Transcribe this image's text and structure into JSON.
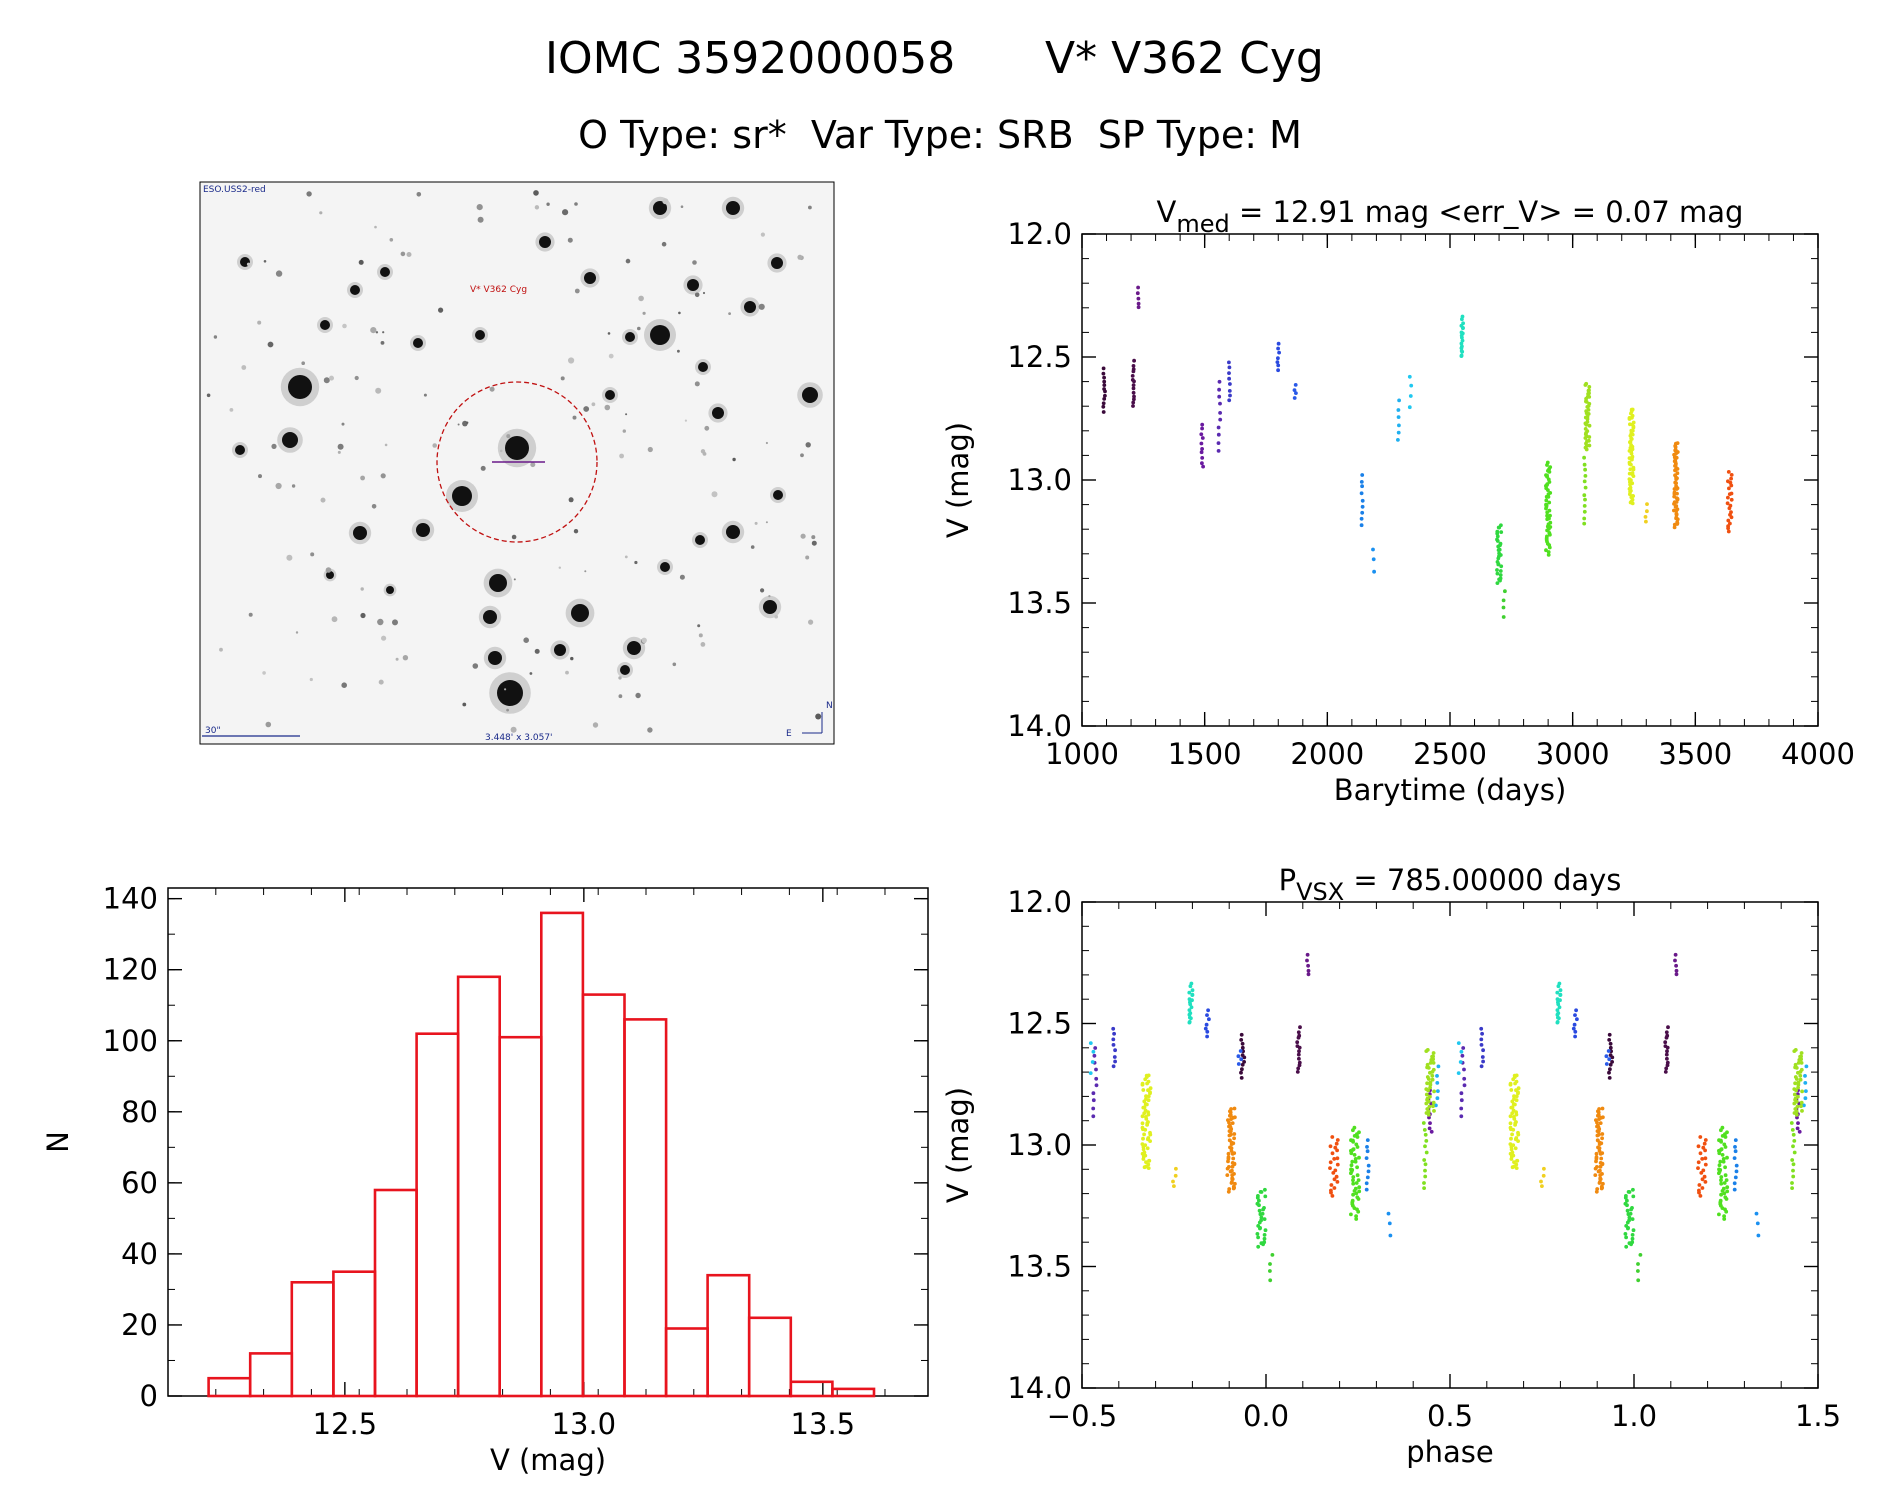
{
  "header": {
    "title_id": "IOMC 3592000058",
    "title_name": "V* V362 Cyg",
    "subtitle": "O Type: sr*  Var Type: SRB  SP Type: M"
  },
  "finder": {
    "survey_label": "ESO.USS2-red",
    "target_label": "V* V362 Cyg",
    "scale_label": "30\"",
    "fov_label": "3.448' x 3.057'",
    "north_label": "N",
    "east_label": "E"
  },
  "chart_data": [
    {
      "id": "lightcurve",
      "type": "scatter",
      "title_main": "V",
      "title_sub": "med",
      "title_rest": " = 12.91 mag <err_V> = 0.07 mag",
      "xlabel": "Barytime (days)",
      "ylabel": "V (mag)",
      "xlim": [
        1000,
        4000
      ],
      "ylim": [
        14.0,
        12.0
      ],
      "xticks": [
        "1000",
        "1500",
        "2000",
        "2500",
        "3000",
        "3500",
        "4000"
      ],
      "yticks": [
        "12.0",
        "12.5",
        "13.0",
        "13.5",
        "14.0"
      ],
      "groups": [
        {
          "t": 1090,
          "v": [
            12.55,
            12.72
          ],
          "n": 12,
          "color": "#3a0a3a"
        },
        {
          "t": 1210,
          "v": [
            12.52,
            12.7
          ],
          "n": 14,
          "color": "#4a0f4a"
        },
        {
          "t": 1230,
          "v": [
            12.22,
            12.3
          ],
          "n": 5,
          "color": "#6a1a8a"
        },
        {
          "t": 1490,
          "v": [
            12.77,
            12.95
          ],
          "n": 10,
          "color": "#6a1aa0"
        },
        {
          "t": 1560,
          "v": [
            12.6,
            12.88
          ],
          "n": 10,
          "color": "#5a2ab0"
        },
        {
          "t": 1600,
          "v": [
            12.52,
            12.68
          ],
          "n": 8,
          "color": "#3a3ac8"
        },
        {
          "t": 1800,
          "v": [
            12.45,
            12.55
          ],
          "n": 7,
          "color": "#2a4ae0"
        },
        {
          "t": 1870,
          "v": [
            12.61,
            12.67
          ],
          "n": 4,
          "color": "#2a5ae8"
        },
        {
          "t": 2140,
          "v": [
            12.98,
            13.18
          ],
          "n": 9,
          "color": "#1a80e8"
        },
        {
          "t": 2190,
          "v": [
            13.28,
            13.37
          ],
          "n": 3,
          "color": "#1a90f0"
        },
        {
          "t": 2290,
          "v": [
            12.68,
            12.84
          ],
          "n": 6,
          "color": "#20b0f0"
        },
        {
          "t": 2340,
          "v": [
            12.58,
            12.7
          ],
          "n": 4,
          "color": "#20c8f0"
        },
        {
          "t": 2550,
          "v": [
            12.34,
            12.5
          ],
          "n": 18,
          "color": "#20e0c0"
        },
        {
          "t": 2700,
          "v": [
            13.18,
            13.42
          ],
          "n": 30,
          "color": "#30d840"
        },
        {
          "t": 2720,
          "v": [
            13.45,
            13.56
          ],
          "n": 4,
          "color": "#40d030"
        },
        {
          "t": 2900,
          "v": [
            12.93,
            13.3
          ],
          "n": 50,
          "color": "#50e020"
        },
        {
          "t": 3050,
          "v": [
            12.91,
            13.18
          ],
          "n": 12,
          "color": "#80e020"
        },
        {
          "t": 3060,
          "v": [
            12.61,
            12.88
          ],
          "n": 40,
          "color": "#a0e020"
        },
        {
          "t": 3240,
          "v": [
            12.71,
            13.1
          ],
          "n": 60,
          "color": "#e0f020"
        },
        {
          "t": 3300,
          "v": [
            13.1,
            13.17
          ],
          "n": 4,
          "color": "#f0d020"
        },
        {
          "t": 3420,
          "v": [
            12.85,
            13.19
          ],
          "n": 60,
          "color": "#f08a10"
        },
        {
          "t": 3640,
          "v": [
            12.97,
            13.21
          ],
          "n": 22,
          "color": "#f05010"
        }
      ]
    },
    {
      "id": "histogram",
      "type": "bar",
      "xlabel": "V (mag)",
      "ylabel": "N",
      "xlim": [
        12.13,
        13.72
      ],
      "ylim": [
        0,
        143
      ],
      "xticks": [
        "12.5",
        "13.0",
        "13.5"
      ],
      "yticks": [
        "0",
        "20",
        "40",
        "60",
        "80",
        "100",
        "120",
        "140"
      ],
      "bin_edges": [
        12.215,
        12.302,
        12.389,
        12.476,
        12.563,
        12.65,
        12.737,
        12.824,
        12.911,
        12.998,
        13.085,
        13.172,
        13.259,
        13.346,
        13.433,
        13.52,
        13.607
      ],
      "values": [
        5,
        12,
        32,
        35,
        58,
        102,
        118,
        101,
        136,
        113,
        106,
        19,
        34,
        22,
        4,
        2
      ],
      "color": "#e8141e"
    },
    {
      "id": "phased",
      "type": "scatter",
      "title_main": "P",
      "title_sub": "VSX",
      "title_rest": " = 785.00000 days",
      "xlabel": "phase",
      "ylabel": "V (mag)",
      "xlim": [
        -0.5,
        1.5
      ],
      "ylim": [
        14.0,
        12.0
      ],
      "xticks": [
        "−0.5",
        "0.0",
        "0.5",
        "1.0",
        "1.5"
      ],
      "yticks": [
        "12.0",
        "12.5",
        "13.0",
        "13.5",
        "14.0"
      ],
      "period": 785.0,
      "epoch": 2710
    }
  ]
}
